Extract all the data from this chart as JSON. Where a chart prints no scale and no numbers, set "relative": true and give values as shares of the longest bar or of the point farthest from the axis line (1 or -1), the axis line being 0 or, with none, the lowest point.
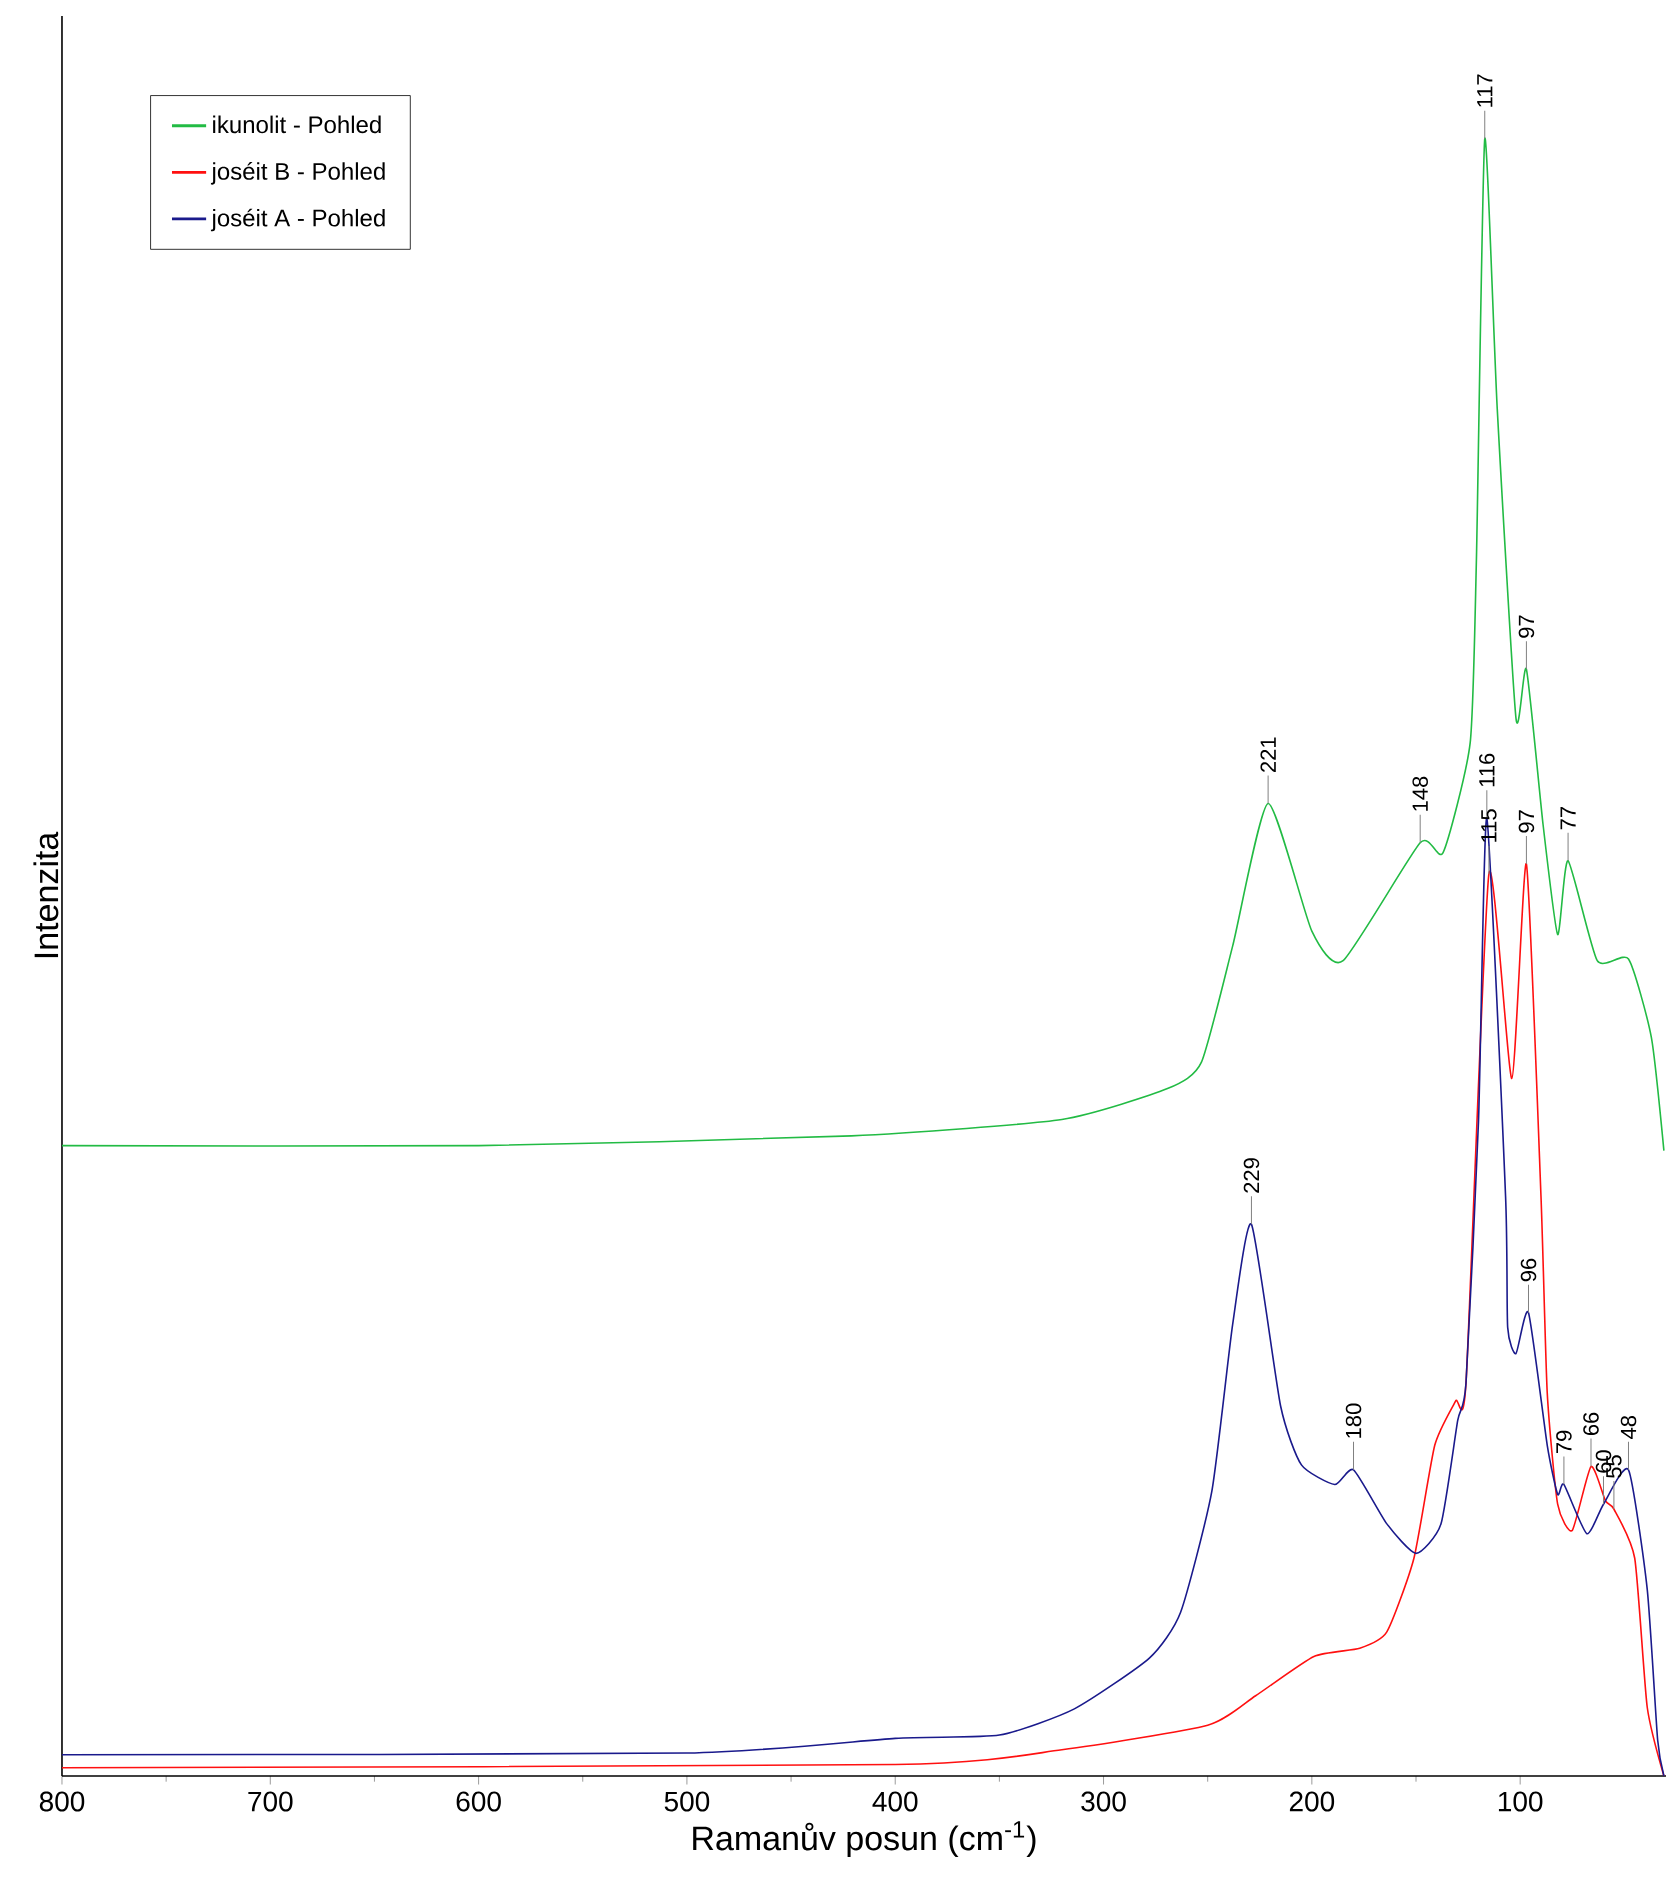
{
  "chart_data": {
    "type": "line",
    "relative": true,
    "xlabel": "Ramanův posun (cm$^{-1}$)",
    "ylabel": "Intenzita",
    "xlim": [
      800,
      30
    ],
    "xticks": [
      800,
      700,
      600,
      500,
      400,
      300,
      200,
      100
    ],
    "legend": "top left",
    "marker": "none",
    "line_style": "solid",
    "series": [
      {
        "name": "ikunolit - Pohled",
        "color": "#22bb44",
        "x": [
          800,
          600,
          421,
          320,
          269,
          253,
          238,
          221,
          200,
          185,
          148,
          137,
          124,
          121,
          117,
          111,
          102,
          97,
          89,
          82,
          77,
          63,
          48,
          37,
          31
        ],
        "values": [
          0.385,
          0.385,
          0.391,
          0.401,
          0.42,
          0.436,
          0.507,
          0.594,
          0.516,
          0.498,
          0.57,
          0.564,
          0.631,
          0.743,
          1.0,
          0.835,
          0.646,
          0.676,
          0.581,
          0.514,
          0.559,
          0.498,
          0.499,
          0.451,
          0.382
        ]
      },
      {
        "name": "joséit B - Pohled",
        "color": "#ff1010",
        "x": [
          800,
          400,
          320,
          250,
          227,
          199,
          177,
          164,
          151,
          141,
          131,
          126,
          115,
          104,
          97,
          90,
          87,
          82,
          75,
          66,
          59,
          55,
          45,
          39,
          31
        ],
        "values": [
          0.005,
          0.007,
          0.016,
          0.031,
          0.049,
          0.073,
          0.078,
          0.088,
          0.133,
          0.202,
          0.229,
          0.24,
          0.551,
          0.426,
          0.557,
          0.354,
          0.234,
          0.166,
          0.15,
          0.189,
          0.168,
          0.163,
          0.133,
          0.042,
          0.0
        ]
      },
      {
        "name": "joséit A - Pohled",
        "color": "#1a1a8c",
        "x": [
          800,
          500,
          400,
          350,
          314,
          278,
          263,
          248,
          238,
          229,
          215,
          205,
          189,
          180,
          164,
          150,
          138,
          130,
          126,
          120,
          116,
          107,
          106,
          102,
          96,
          87,
          82,
          79,
          68,
          60,
          48,
          39,
          34,
          31
        ],
        "values": [
          0.013,
          0.014,
          0.023,
          0.025,
          0.041,
          0.072,
          0.1,
          0.174,
          0.276,
          0.337,
          0.226,
          0.19,
          0.178,
          0.187,
          0.154,
          0.136,
          0.154,
          0.217,
          0.24,
          0.4,
          0.585,
          0.354,
          0.274,
          0.258,
          0.283,
          0.202,
          0.172,
          0.178,
          0.148,
          0.166,
          0.187,
          0.114,
          0.022,
          0.0
        ]
      }
    ],
    "annotations": [
      {
        "text": "117",
        "x": 117,
        "y": 1.0
      },
      {
        "text": "97",
        "x": 97,
        "y": 0.676
      },
      {
        "text": "221",
        "x": 221,
        "y": 0.594
      },
      {
        "text": "148",
        "x": 148,
        "y": 0.57
      },
      {
        "text": "116",
        "x": 116,
        "y": 0.585
      },
      {
        "text": "115",
        "x": 115,
        "y": 0.551
      },
      {
        "text": "97",
        "x": 97,
        "y": 0.557
      },
      {
        "text": "77",
        "x": 77,
        "y": 0.559
      },
      {
        "text": "229",
        "x": 229,
        "y": 0.337
      },
      {
        "text": "96",
        "x": 96,
        "y": 0.283
      },
      {
        "text": "180",
        "x": 180,
        "y": 0.187
      },
      {
        "text": "79",
        "x": 79,
        "y": 0.178
      },
      {
        "text": "66",
        "x": 66,
        "y": 0.189
      },
      {
        "text": "60",
        "x": 60,
        "y": 0.166
      },
      {
        "text": "55",
        "x": 55,
        "y": 0.163
      },
      {
        "text": "48",
        "x": 48,
        "y": 0.187
      }
    ]
  }
}
